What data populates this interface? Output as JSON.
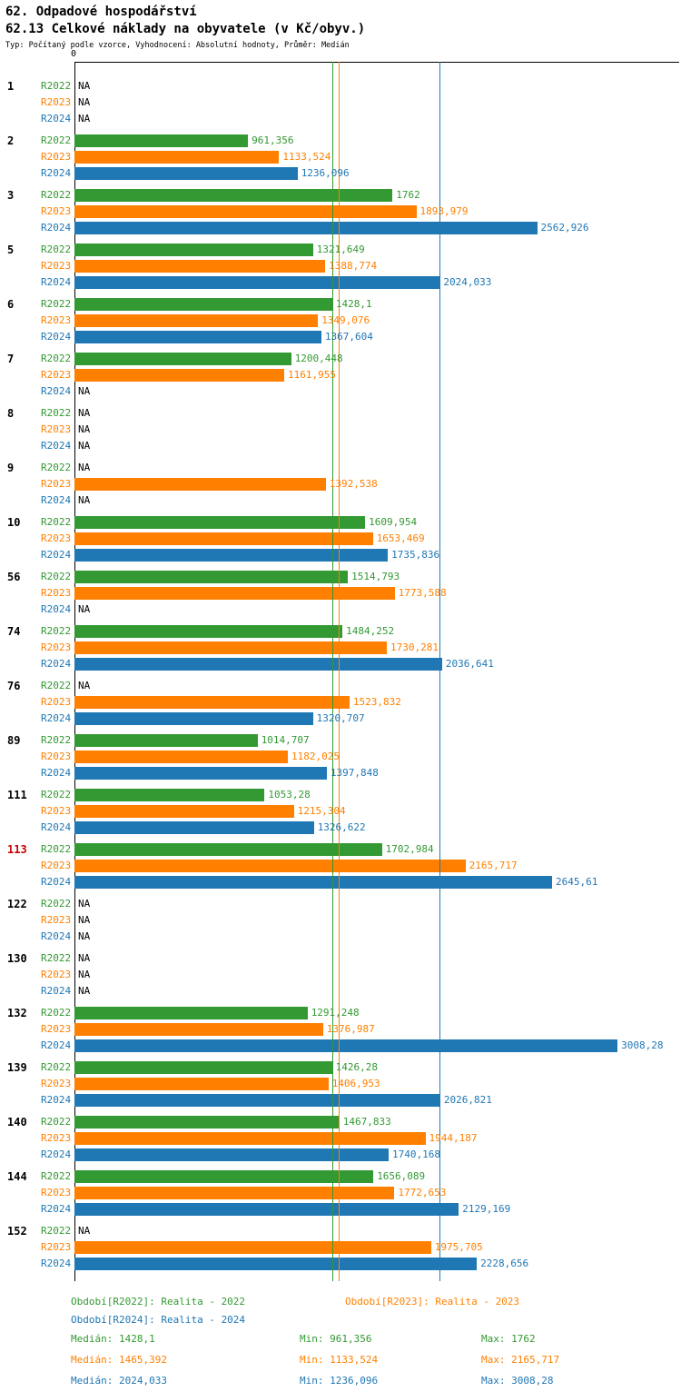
{
  "header": {
    "title": "62. Odpadové hospodářství",
    "subtitle": "62.13 Celkové náklady na obyvatele (v Kč/obyv.)",
    "meta": "Typ: Počítaný podle vzorce, Vyhodnocení: Absolutní hodnoty, Průměr: Medián"
  },
  "chart_data": {
    "type": "bar",
    "orientation": "horizontal",
    "title": "62.13 Celkové náklady na obyvatele (v Kč/obyv.)",
    "origin_label": "0",
    "xlim": [
      0,
      3350
    ],
    "grid": false,
    "legend_position": "bottom",
    "na_text": "NA",
    "highlighted_category": "113",
    "highlight_color": "#cc0000",
    "categories": [
      "1",
      "2",
      "3",
      "5",
      "6",
      "7",
      "8",
      "9",
      "10",
      "56",
      "74",
      "76",
      "89",
      "111",
      "113",
      "122",
      "130",
      "132",
      "139",
      "140",
      "144",
      "152"
    ],
    "series": [
      {
        "name": "R2022",
        "legend_label": "Období[R2022]: Realita - 2022",
        "color": "#339933",
        "values": [
          null,
          961.356,
          1762,
          1321.649,
          1428.1,
          1200.448,
          null,
          null,
          1609.954,
          1514.793,
          1484.252,
          null,
          1014.707,
          1053.28,
          1702.984,
          null,
          null,
          1291.248,
          1426.28,
          1467.833,
          1656.089,
          null
        ],
        "value_labels": [
          "NA",
          "961,356",
          "1762",
          "1321,649",
          "1428,1",
          "1200,448",
          "NA",
          "NA",
          "1609,954",
          "1514,793",
          "1484,252",
          "NA",
          "1014,707",
          "1053,28",
          "1702,984",
          "NA",
          "NA",
          "1291,248",
          "1426,28",
          "1467,833",
          "1656,089",
          "NA"
        ],
        "median": 1428.1,
        "min": 961.356,
        "max": 1762,
        "median_label": "Medián: 1428,1",
        "min_label": "Min: 961,356",
        "max_label": "Max: 1762"
      },
      {
        "name": "R2023",
        "legend_label": "Období[R2023]: Realita - 2023",
        "color": "#ff8000",
        "values": [
          null,
          1133.524,
          1893.979,
          1388.774,
          1349.076,
          1161.955,
          null,
          1392.538,
          1653.469,
          1773.588,
          1730.281,
          1523.832,
          1182.025,
          1215.304,
          2165.717,
          null,
          null,
          1376.987,
          1406.953,
          1944.187,
          1772.653,
          1975.705
        ],
        "value_labels": [
          "NA",
          "1133,524",
          "1893,979",
          "1388,774",
          "1349,076",
          "1161,955",
          "NA",
          "1392,538",
          "1653,469",
          "1773,588",
          "1730,281",
          "1523,832",
          "1182,025",
          "1215,304",
          "2165,717",
          "NA",
          "NA",
          "1376,987",
          "1406,953",
          "1944,187",
          "1772,653",
          "1975,705"
        ],
        "median": 1465.392,
        "min": 1133.524,
        "max": 2165.717,
        "median_label": "Medián: 1465,392",
        "min_label": "Min: 1133,524",
        "max_label": "Max: 2165,717"
      },
      {
        "name": "R2024",
        "legend_label": "Období[R2024]: Realita - 2024",
        "color": "#1f77b4",
        "values": [
          null,
          1236.096,
          2562.926,
          2024.033,
          1367.604,
          null,
          null,
          null,
          1735.836,
          null,
          2036.641,
          1320.707,
          1397.848,
          1326.622,
          2645.61,
          null,
          null,
          3008.28,
          2026.821,
          1740.168,
          2129.169,
          2228.656
        ],
        "value_labels": [
          "NA",
          "1236,096",
          "2562,926",
          "2024,033",
          "1367,604",
          "NA",
          "NA",
          "NA",
          "1735,836",
          "NA",
          "2036,641",
          "1320,707",
          "1397,848",
          "1326,622",
          "2645,61",
          "NA",
          "NA",
          "3008,28",
          "2026,821",
          "1740,168",
          "2129,169",
          "2228,656"
        ],
        "median": 2024.033,
        "min": 1236.096,
        "max": 3008.28,
        "median_label": "Medián: 2024,033",
        "min_label": "Min: 1236,096",
        "max_label": "Max: 3008,28"
      }
    ]
  }
}
